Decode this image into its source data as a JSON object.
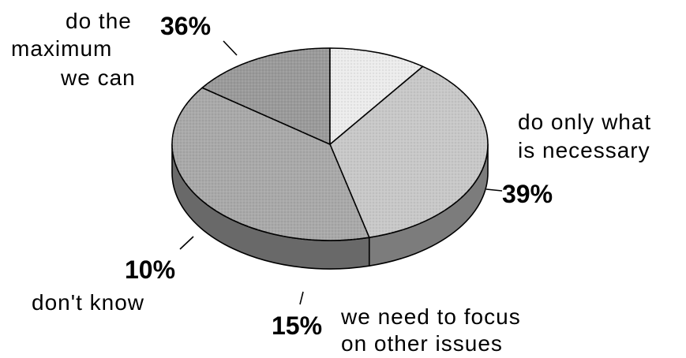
{
  "chart_data": {
    "type": "pie",
    "title": "",
    "slices": [
      {
        "label_lines": [
          "do the",
          "maximum",
          "we can"
        ],
        "value": 36,
        "value_label": "36%",
        "color": "#c8c8c8"
      },
      {
        "label_lines": [
          "do only what",
          "is necessary"
        ],
        "value": 39,
        "value_label": "39%",
        "color": "#a9a9a9"
      },
      {
        "label_lines": [
          "we need to focus",
          "on other issues"
        ],
        "value": 15,
        "value_label": "15%",
        "color": "#9a9a9a"
      },
      {
        "label_lines": [
          "don't know"
        ],
        "value": 10,
        "value_label": "10%",
        "color": "#ececec"
      }
    ],
    "legend": "none",
    "style": "3d-tilted"
  }
}
